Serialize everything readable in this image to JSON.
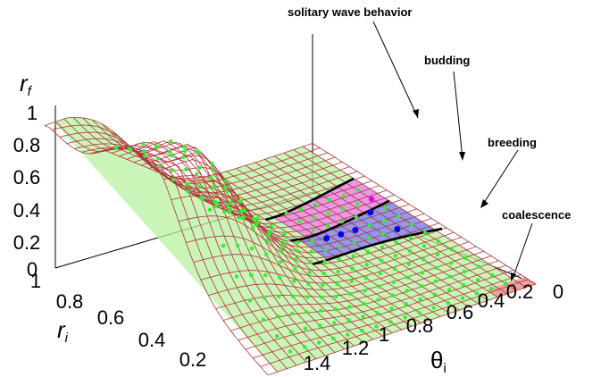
{
  "chart_data": {
    "type": "surface",
    "z_axis": {
      "label": "r",
      "label_sub": "f",
      "range": [
        0,
        1
      ],
      "ticks": [
        "0",
        "0.2",
        "0.4",
        "0.6",
        "0.8",
        "1"
      ]
    },
    "ri_axis": {
      "label": "r",
      "label_sub": "i",
      "range": [
        0,
        1
      ],
      "ticks": [
        "1",
        "0.8",
        "0.6",
        "0.4",
        "0.2"
      ]
    },
    "theta_axis": {
      "label": "θ",
      "label_sub": "i",
      "range": [
        0,
        1.4
      ],
      "ticks": [
        "1.4",
        "1.2",
        "1",
        "0.8",
        "0.6",
        "0.4",
        "0.2",
        "0"
      ]
    },
    "regions": [
      {
        "name": "solitary wave behavior",
        "color": "#b8f0a0"
      },
      {
        "name": "budding",
        "color": "#ee88ee"
      },
      {
        "name": "breeding",
        "color": "#8888ee"
      },
      {
        "name": "coalescence",
        "color": "#ee9a9a"
      }
    ],
    "mesh_color": "#b0353a",
    "marker_colors": {
      "green": "#33ee33",
      "blue": "#0000ee",
      "magenta": "#ee00ee"
    }
  }
}
